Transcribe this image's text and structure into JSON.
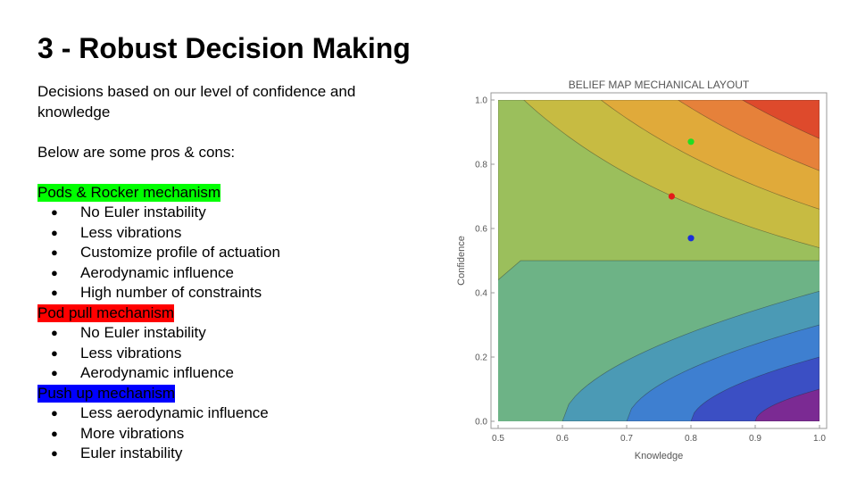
{
  "slide": {
    "title": "3 - Robust Decision Making",
    "intro": "Decisions based on our level of confidence and knowledge",
    "pros_cons_intro": "Below are some pros & cons:",
    "sections": [
      {
        "label": "Pods & Rocker mechanism",
        "highlight_color": "#00ff00",
        "items": [
          "No Euler instability",
          "Less vibrations",
          "Customize profile of actuation",
          "Aerodynamic influence",
          "High number of constraints"
        ]
      },
      {
        "label": "Pod pull mechanism",
        "highlight_color": "#ff0000",
        "items": [
          "No Euler instability",
          "Less vibrations",
          "Aerodynamic influence"
        ]
      },
      {
        "label": "Push up mechanism",
        "highlight_color": "#0000ff",
        "items": [
          "Less aerodynamic influence",
          "More vibrations",
          "Euler instability"
        ]
      }
    ],
    "bullet_glyph": "●"
  },
  "chart_data": {
    "type": "contour",
    "title": "BELIEF MAP MECHANICAL LAYOUT",
    "xlabel": "Knowledge",
    "ylabel": "Confidence",
    "xlim": [
      0.5,
      1.0
    ],
    "ylim": [
      0.0,
      1.0
    ],
    "xticks": [
      "0.5",
      "0.6",
      "0.7",
      "0.8",
      "0.9",
      "1.0"
    ],
    "yticks": [
      "0.0",
      "0.2",
      "0.4",
      "0.6",
      "0.8",
      "1.0"
    ],
    "contour_colors": [
      "#7b2a93",
      "#3b4fc4",
      "#3e7fd0",
      "#4b9ab5",
      "#6db386",
      "#9bbf5c",
      "#c7bb42",
      "#e0aa3a",
      "#e6813a",
      "#de4a2c"
    ],
    "points": [
      {
        "x": 0.8,
        "y": 0.87,
        "color": "#22dd22"
      },
      {
        "x": 0.77,
        "y": 0.7,
        "color": "#e41a1a"
      },
      {
        "x": 0.8,
        "y": 0.57,
        "color": "#1a2ed9"
      }
    ]
  }
}
